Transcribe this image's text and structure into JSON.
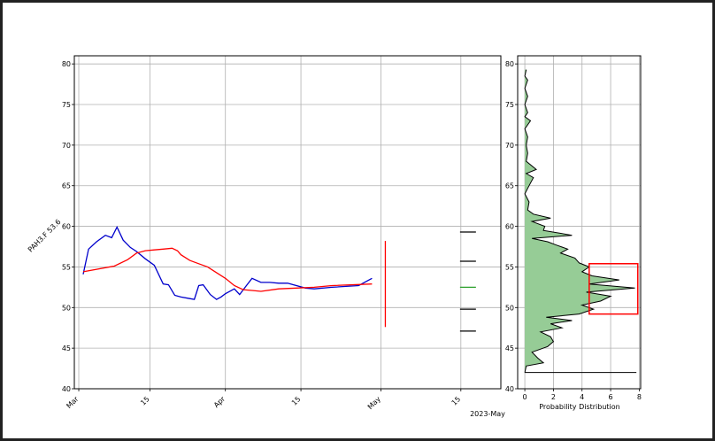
{
  "chart_data": [
    {
      "type": "line",
      "ylabel": "PAH3.F 53.6",
      "x_ticks": [
        "Mar",
        "15",
        "Apr",
        "15",
        "May",
        "15"
      ],
      "x_suffix_label": "2023-May",
      "y_ticks": [
        40,
        45,
        50,
        55,
        60,
        65,
        70,
        75,
        80
      ],
      "ylim": [
        40,
        81
      ],
      "xlim": [
        -1,
        47
      ],
      "grid": true,
      "series": [
        {
          "color": "#0000cc",
          "x": [
            0,
            0.6,
            1.5,
            2.5,
            3.2,
            3.8,
            4.5,
            5.3,
            6.0,
            7.0,
            8.0,
            9.0,
            9.6,
            10.3,
            11.0,
            12.0,
            12.5,
            13.0,
            13.5,
            14.3,
            15.0,
            15.5,
            16.0,
            17.0,
            17.6,
            18.3,
            19.0,
            20.0,
            21.0,
            22.0,
            23.0,
            25.0,
            26.0,
            28.0,
            31.0,
            32.5
          ],
          "y": [
            54.1,
            57.2,
            58.1,
            58.9,
            58.6,
            59.9,
            58.3,
            57.4,
            56.9,
            56.0,
            55.2,
            52.9,
            52.8,
            51.5,
            51.3,
            51.1,
            51.0,
            52.7,
            52.8,
            51.6,
            51.0,
            51.3,
            51.7,
            52.3,
            51.6,
            52.6,
            53.6,
            53.1,
            53.1,
            53.0,
            53.0,
            52.4,
            52.3,
            52.5,
            52.7,
            53.6
          ]
        },
        {
          "color": "#ff0000",
          "x": [
            0,
            3.5,
            5.0,
            6.0,
            7.0,
            8.0,
            9.0,
            10.0,
            10.6,
            11.0,
            12.0,
            13.0,
            14.0,
            15.0,
            16.0,
            17.0,
            18.0,
            19.0,
            20.0,
            22.0,
            24.0,
            26.0,
            28.0,
            32.5
          ],
          "y": [
            54.4,
            55.1,
            55.9,
            56.7,
            57.0,
            57.1,
            57.2,
            57.3,
            57.0,
            56.5,
            55.8,
            55.4,
            55.0,
            54.3,
            53.6,
            52.7,
            52.2,
            52.1,
            52.0,
            52.3,
            52.4,
            52.5,
            52.7,
            52.9
          ]
        }
      ],
      "red_range": {
        "x": 34,
        "y_min": 47.6,
        "y_max": 58.2
      },
      "markers": [
        {
          "x": 43.3,
          "y": 59.3,
          "color": "#000000"
        },
        {
          "x": 43.3,
          "y": 55.7,
          "color": "#000000"
        },
        {
          "x": 43.3,
          "y": 52.5,
          "color": "#2ca02c"
        },
        {
          "x": 43.3,
          "y": 49.8,
          "color": "#000000"
        },
        {
          "x": 43.3,
          "y": 47.1,
          "color": "#000000"
        }
      ]
    },
    {
      "type": "area",
      "xlabel": "Probability Distribution",
      "x_ticks": [
        0,
        2,
        4,
        6,
        8
      ],
      "xlim": [
        -0.5,
        8.1
      ],
      "y_ticks": [
        40,
        45,
        50,
        55,
        60,
        65,
        70,
        75,
        80
      ],
      "ylim": [
        40,
        81
      ],
      "grid": true,
      "fill_color": "#96cc96",
      "density": [
        [
          0,
          42.0
        ],
        [
          0.1,
          42.8
        ],
        [
          1.3,
          43.2
        ],
        [
          0.9,
          43.8
        ],
        [
          0.5,
          44.5
        ],
        [
          1.6,
          45.2
        ],
        [
          2.0,
          45.8
        ],
        [
          1.8,
          46.4
        ],
        [
          1.1,
          47.0
        ],
        [
          2.6,
          47.5
        ],
        [
          1.8,
          48.0
        ],
        [
          3.3,
          48.4
        ],
        [
          1.5,
          48.8
        ],
        [
          3.8,
          49.2
        ],
        [
          4.8,
          49.8
        ],
        [
          4.0,
          50.3
        ],
        [
          5.3,
          50.8
        ],
        [
          6.0,
          51.4
        ],
        [
          4.3,
          51.9
        ],
        [
          7.7,
          52.4
        ],
        [
          4.5,
          52.9
        ],
        [
          6.6,
          53.4
        ],
        [
          4.7,
          53.9
        ],
        [
          4.0,
          54.4
        ],
        [
          4.5,
          55.0
        ],
        [
          3.8,
          55.5
        ],
        [
          3.5,
          56.1
        ],
        [
          2.5,
          56.7
        ],
        [
          3.0,
          57.2
        ],
        [
          2.2,
          57.7
        ],
        [
          1.6,
          58.1
        ],
        [
          0.5,
          58.5
        ],
        [
          3.3,
          58.9
        ],
        [
          1.3,
          59.5
        ],
        [
          1.4,
          60.0
        ],
        [
          0.5,
          60.6
        ],
        [
          1.8,
          61.0
        ],
        [
          0.6,
          61.5
        ],
        [
          0.2,
          62.0
        ],
        [
          0.3,
          63.0
        ],
        [
          0.0,
          64.0
        ],
        [
          0.3,
          65.0
        ],
        [
          0.6,
          66.0
        ],
        [
          0.1,
          66.5
        ],
        [
          0.8,
          67.0
        ],
        [
          0.1,
          68.0
        ],
        [
          0.2,
          69.0
        ],
        [
          0.1,
          70.0
        ],
        [
          0.2,
          71.0
        ],
        [
          0.0,
          72.0
        ],
        [
          0.4,
          73.0
        ],
        [
          0.0,
          73.5
        ],
        [
          0.2,
          74.0
        ],
        [
          0.0,
          75.0
        ],
        [
          0.2,
          76.0
        ],
        [
          0.0,
          77.0
        ],
        [
          0.2,
          78.0
        ],
        [
          0.0,
          78.5
        ],
        [
          0.1,
          79.3
        ]
      ],
      "baseline": {
        "y": 42.0,
        "x_min": 0,
        "x_max": 7.8
      },
      "highlight_box": {
        "x_min": 4.5,
        "x_max": 7.9,
        "y_min": 49.2,
        "y_max": 55.4,
        "color": "#ff0000"
      }
    }
  ]
}
